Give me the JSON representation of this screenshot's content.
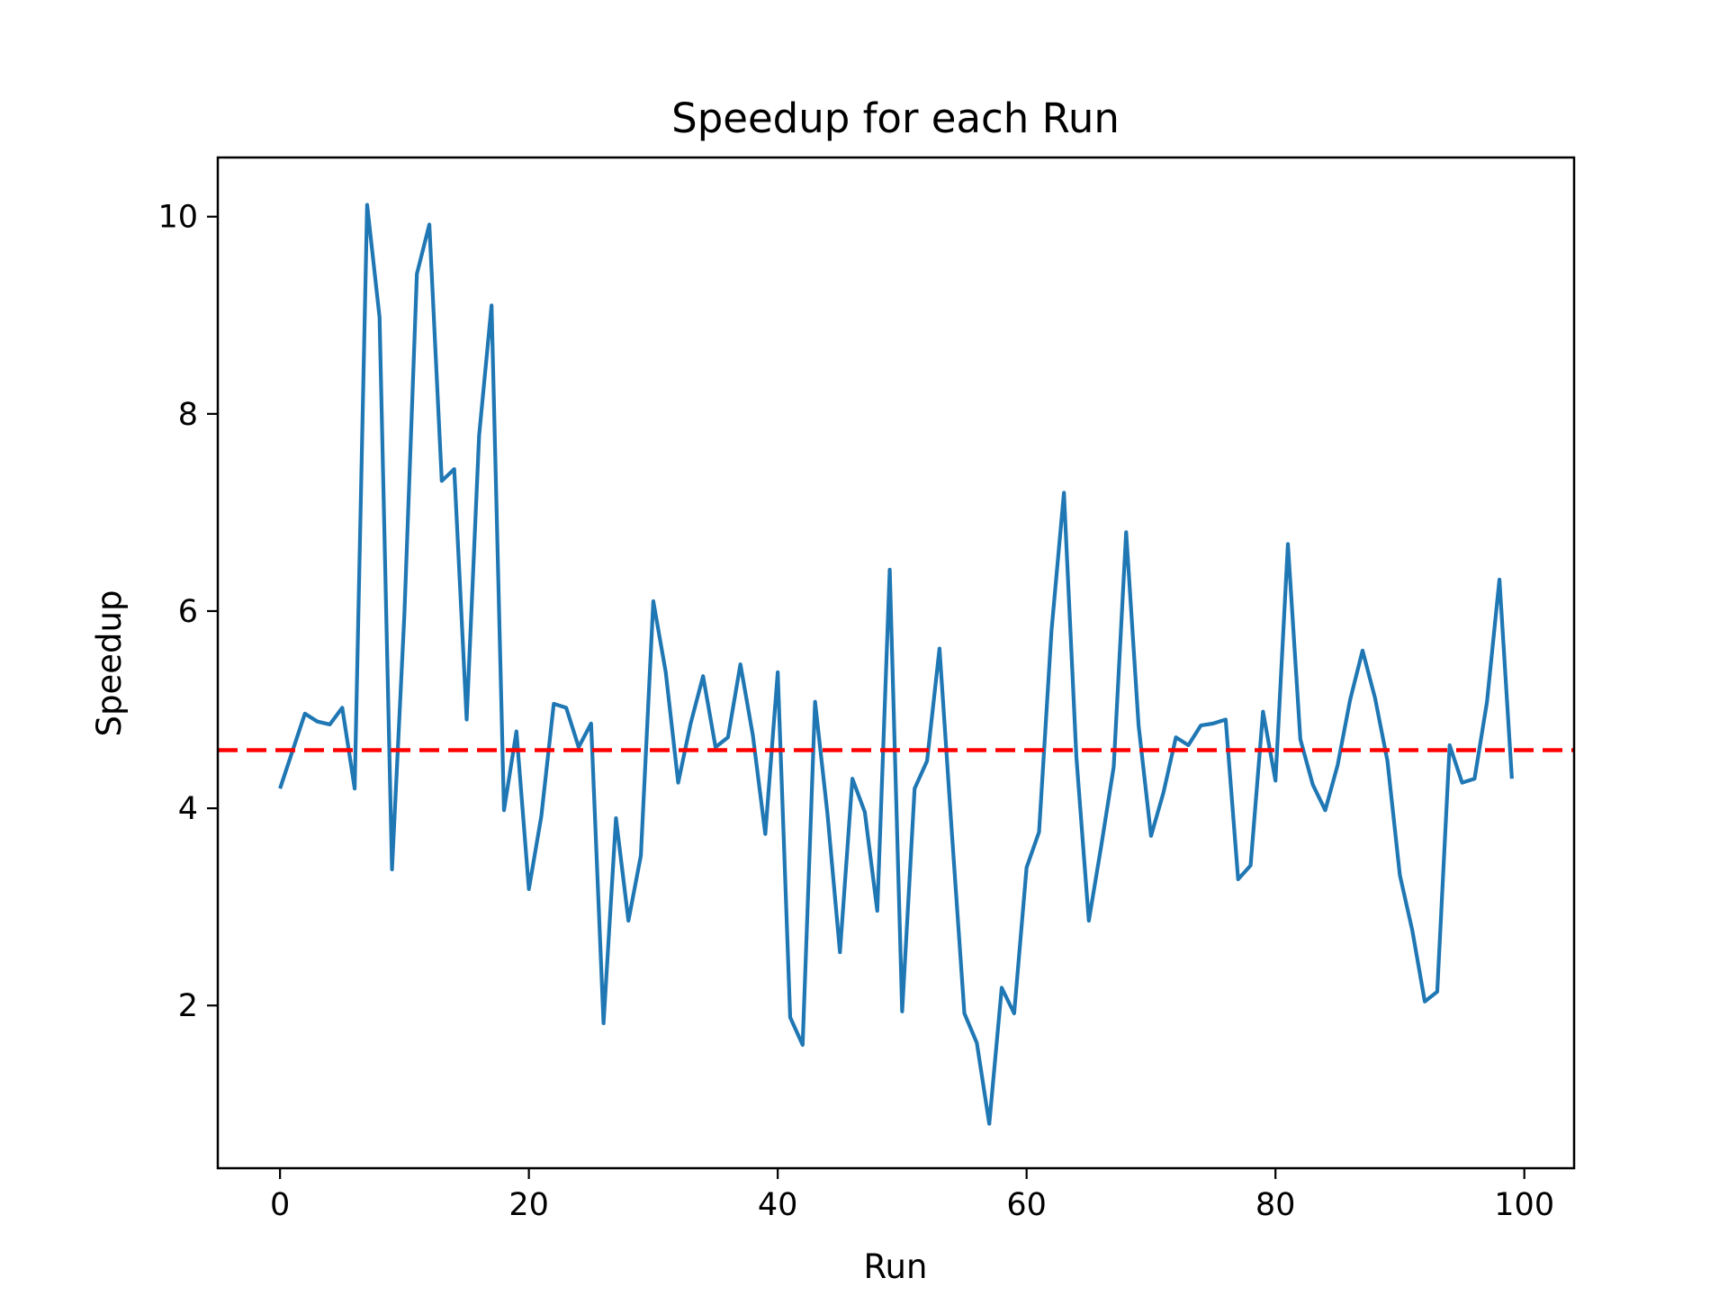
{
  "chart_data": {
    "type": "line",
    "title": "Speedup for each Run",
    "xlabel": "Run",
    "ylabel": "Speedup",
    "xlim": [
      -5,
      104
    ],
    "ylim": [
      0.35,
      10.6
    ],
    "xticks": [
      0,
      20,
      40,
      60,
      80,
      100
    ],
    "yticks": [
      2,
      4,
      6,
      8,
      10
    ],
    "grid": false,
    "legend": "none",
    "series": [
      {
        "color": "#1f77b4",
        "x": [
          0,
          1,
          2,
          3,
          4,
          5,
          6,
          7,
          8,
          9,
          10,
          11,
          12,
          13,
          14,
          15,
          16,
          17,
          18,
          19,
          20,
          21,
          22,
          23,
          24,
          25,
          26,
          27,
          28,
          29,
          30,
          31,
          32,
          33,
          34,
          35,
          36,
          37,
          38,
          39,
          40,
          41,
          42,
          43,
          44,
          45,
          46,
          47,
          48,
          49,
          50,
          51,
          52,
          53,
          54,
          55,
          56,
          57,
          58,
          59,
          60,
          61,
          62,
          63,
          64,
          65,
          66,
          67,
          68,
          69,
          70,
          71,
          72,
          73,
          74,
          75,
          76,
          77,
          78,
          79,
          80,
          81,
          82,
          83,
          84,
          85,
          86,
          87,
          88,
          89,
          90,
          91,
          92,
          93,
          94,
          95,
          96,
          97,
          98,
          99
        ],
        "values": [
          4.2,
          4.58,
          4.96,
          4.88,
          4.85,
          5.02,
          4.2,
          10.12,
          8.98,
          3.38,
          5.98,
          9.42,
          9.92,
          7.32,
          7.44,
          4.9,
          7.78,
          9.1,
          3.98,
          4.78,
          3.18,
          3.92,
          5.06,
          5.02,
          4.62,
          4.86,
          1.82,
          3.9,
          2.86,
          3.52,
          6.1,
          5.38,
          4.26,
          4.86,
          5.34,
          4.62,
          4.72,
          5.46,
          4.74,
          3.74,
          5.38,
          1.88,
          1.6,
          5.08,
          3.94,
          2.54,
          4.3,
          3.96,
          2.96,
          6.42,
          1.94,
          4.2,
          4.48,
          5.62,
          3.74,
          1.92,
          1.62,
          0.8,
          2.18,
          1.92,
          3.4,
          3.76,
          5.8,
          7.2,
          4.52,
          2.86,
          3.62,
          4.42,
          6.8,
          4.84,
          3.72,
          4.16,
          4.72,
          4.64,
          4.84,
          4.86,
          4.9,
          3.28,
          3.42,
          4.98,
          4.28,
          6.68,
          4.7,
          4.24,
          3.98,
          4.44,
          5.1,
          5.6,
          5.12,
          4.48,
          3.32,
          2.76,
          2.04,
          2.14,
          4.64,
          4.26,
          4.3,
          5.08,
          6.32,
          4.3
        ]
      },
      {
        "color": "#ff0000",
        "style": "dashed",
        "x": [
          -5,
          104
        ],
        "values": [
          4.59,
          4.59
        ]
      }
    ]
  }
}
